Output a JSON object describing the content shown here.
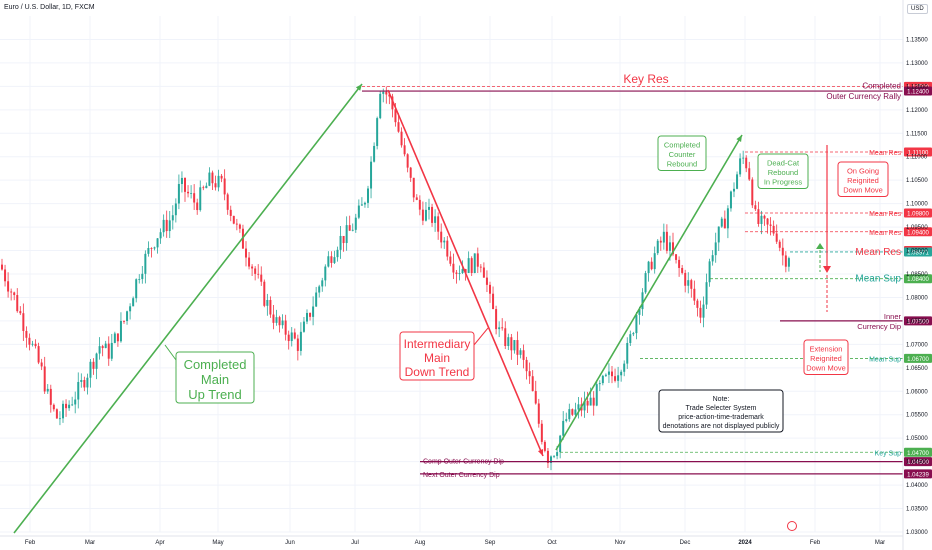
{
  "header": {
    "title": "Euro / U.S. Dollar, 1D, FXCM",
    "currency": "USD"
  },
  "chart_data": {
    "type": "candlestick",
    "ylim": [
      1.03,
      1.14
    ],
    "x_labels": [
      "Feb",
      "Mar",
      "Apr",
      "May",
      "Jun",
      "Jul",
      "Aug",
      "Sep",
      "Oct",
      "Nov",
      "Dec",
      "2024",
      "Feb",
      "Mar"
    ],
    "y_ticks": [
      1.135,
      1.13,
      1.125,
      1.12,
      1.115,
      1.11,
      1.105,
      1.1,
      1.095,
      1.09,
      1.085,
      1.08,
      1.075,
      1.07,
      1.065,
      1.06,
      1.055,
      1.05,
      1.045,
      1.04,
      1.035,
      1.03
    ],
    "price_path": [
      [
        0,
        1.087
      ],
      [
        14,
        1.08
      ],
      [
        28,
        1.072
      ],
      [
        42,
        1.064
      ],
      [
        50,
        1.057
      ],
      [
        58,
        1.054
      ],
      [
        68,
        1.057
      ],
      [
        78,
        1.06
      ],
      [
        92,
        1.066
      ],
      [
        100,
        1.07
      ],
      [
        108,
        1.068
      ],
      [
        124,
        1.075
      ],
      [
        140,
        1.086
      ],
      [
        156,
        1.093
      ],
      [
        172,
        1.097
      ],
      [
        180,
        1.104
      ],
      [
        196,
        1.1
      ],
      [
        210,
        1.105
      ],
      [
        222,
        1.104
      ],
      [
        236,
        1.095
      ],
      [
        250,
        1.088
      ],
      [
        264,
        1.08
      ],
      [
        278,
        1.074
      ],
      [
        290,
        1.072
      ],
      [
        298,
        1.07
      ],
      [
        312,
        1.078
      ],
      [
        328,
        1.088
      ],
      [
        338,
        1.092
      ],
      [
        350,
        1.094
      ],
      [
        364,
        1.1
      ],
      [
        372,
        1.11
      ],
      [
        380,
        1.125
      ],
      [
        388,
        1.123
      ],
      [
        396,
        1.118
      ],
      [
        406,
        1.108
      ],
      [
        418,
        1.099
      ],
      [
        432,
        1.097
      ],
      [
        446,
        1.091
      ],
      [
        456,
        1.086
      ],
      [
        470,
        1.087
      ],
      [
        482,
        1.088
      ],
      [
        490,
        1.079
      ],
      [
        500,
        1.072
      ],
      [
        510,
        1.07
      ],
      [
        520,
        1.068
      ],
      [
        530,
        1.062
      ],
      [
        540,
        1.052
      ],
      [
        548,
        1.046
      ],
      [
        556,
        1.048
      ],
      [
        566,
        1.054
      ],
      [
        578,
        1.056
      ],
      [
        592,
        1.058
      ],
      [
        604,
        1.062
      ],
      [
        616,
        1.064
      ],
      [
        628,
        1.069
      ],
      [
        640,
        1.08
      ],
      [
        652,
        1.088
      ],
      [
        664,
        1.093
      ],
      [
        676,
        1.087
      ],
      [
        688,
        1.083
      ],
      [
        700,
        1.076
      ],
      [
        712,
        1.09
      ],
      [
        724,
        1.096
      ],
      [
        734,
        1.104
      ],
      [
        742,
        1.11
      ],
      [
        748,
        1.108
      ],
      [
        756,
        1.096
      ],
      [
        766,
        1.095
      ],
      [
        776,
        1.094
      ],
      [
        784,
        1.088
      ],
      [
        790,
        1.0897
      ]
    ],
    "levels": [
      {
        "label": "Completed",
        "value": 1.125,
        "color": "#f23645",
        "style": "dashed",
        "tag": "1.12500"
      },
      {
        "label": "Outer Currency Rally",
        "value": 1.124,
        "color": "#880e4f",
        "style": "solid",
        "tag": "1.12400"
      },
      {
        "label": "Mean Res",
        "value": 1.111,
        "color": "#f23645",
        "style": "dashed",
        "tag": "1.11100"
      },
      {
        "label": "Mean Res",
        "value": 1.098,
        "color": "#f23645",
        "style": "dashed",
        "tag": "1.09800"
      },
      {
        "label": "Mean Res",
        "value": 1.094,
        "color": "#f23645",
        "style": "dashed",
        "tag": "1.09400"
      },
      {
        "label": "",
        "value": 1.09,
        "color": "#f23645",
        "style": "none",
        "tag": "1.09000"
      },
      {
        "label": "Mean Res",
        "value": 1.0897,
        "color": "#26a69a",
        "style": "dashed",
        "tag": "1.08971"
      },
      {
        "label": "Mean Sup",
        "value": 1.084,
        "color": "#4caf50",
        "style": "dashed",
        "tag": "1.08400"
      },
      {
        "label": "Inner Currency Dip",
        "value": 1.075,
        "color": "#880e4f",
        "style": "solid",
        "tag": "1.07500"
      },
      {
        "label": "Mean Sup",
        "value": 1.067,
        "color": "#4caf50",
        "style": "dashed",
        "tag": "1.06700"
      },
      {
        "label": "Key Sup",
        "value": 1.047,
        "color": "#4caf50",
        "style": "dashed",
        "tag": "1.04700"
      },
      {
        "label": "Comp Outer Currency Dip",
        "value": 1.045,
        "color": "#880e4f",
        "style": "solid",
        "tag": "1.04500"
      },
      {
        "label": "Next Outer Currency Dip",
        "value": 1.04239,
        "color": "#880e4f",
        "style": "solid",
        "tag": "1.04239"
      }
    ],
    "annotations": {
      "key_res": "Key Res",
      "main_up": [
        "Completed",
        "Main",
        "Up Trend"
      ],
      "main_down": [
        "Intermediary",
        "Main",
        "Down Trend"
      ],
      "counter_rebound": [
        "Completed",
        "Counter",
        "Rebound"
      ],
      "dead_cat": [
        "Dead-Cat",
        "Rebound",
        "In Progress"
      ],
      "ongoing": [
        "On Going",
        "Reignited",
        "Down Move"
      ],
      "extension": [
        "Extension",
        "Reignited",
        "Down Move"
      ],
      "note": [
        "Note:",
        "Trade Selecter System",
        "price-action-time-trademark",
        "denotations are not displayed publicly"
      ]
    }
  },
  "colors": {
    "up": "#26a69a",
    "down": "#f23645",
    "dark_red": "#880e4f",
    "green": "#4caf50",
    "axis": "#131722",
    "grid": "#e0e3eb"
  }
}
